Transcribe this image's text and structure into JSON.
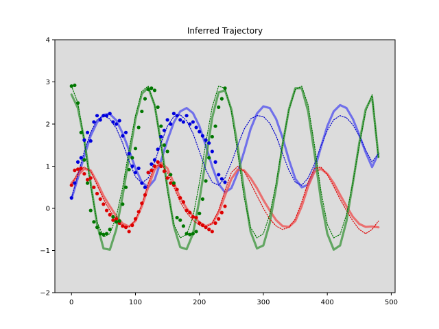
{
  "chart_data": {
    "type": "line",
    "title": "Inferred Trajectory",
    "xlabel": "",
    "ylabel": "",
    "xlim": [
      -26,
      506
    ],
    "ylim": [
      -2,
      4
    ],
    "xticks": [
      0,
      100,
      200,
      300,
      400,
      500
    ],
    "yticks": [
      -2,
      -1,
      0,
      1,
      2,
      3,
      4
    ],
    "grid": false,
    "background": "#dcdcdc",
    "series": [
      {
        "role": "inferred",
        "color": "#5555ee",
        "x": [
          0,
          10,
          20,
          30,
          40,
          50,
          60,
          70,
          80,
          90,
          100,
          110,
          120,
          130,
          140,
          150,
          160,
          170,
          180,
          190,
          200,
          210,
          220,
          230,
          240,
          250,
          260,
          270,
          280,
          290,
          300,
          310,
          320,
          330,
          340,
          350,
          360,
          370,
          380,
          390,
          400,
          410,
          420,
          430,
          440,
          450,
          460,
          470,
          480
        ],
        "y": [
          0.22,
          0.72,
          1.24,
          1.72,
          2.04,
          2.22,
          2.24,
          2.09,
          1.78,
          1.38,
          0.95,
          0.62,
          0.5,
          0.68,
          1.13,
          1.62,
          2.04,
          2.3,
          2.38,
          2.26,
          1.95,
          1.49,
          0.99,
          0.58,
          0.38,
          0.48,
          0.85,
          1.35,
          1.88,
          2.25,
          2.42,
          2.38,
          2.12,
          1.68,
          1.15,
          0.7,
          0.5,
          0.56,
          0.92,
          1.45,
          1.95,
          2.3,
          2.45,
          2.38,
          2.12,
          1.74,
          1.33,
          0.98,
          1.3
        ]
      },
      {
        "role": "inferred",
        "color": "#ee5555",
        "x": [
          0,
          10,
          20,
          30,
          40,
          50,
          60,
          70,
          80,
          90,
          100,
          110,
          120,
          130,
          140,
          150,
          160,
          170,
          180,
          190,
          200,
          210,
          220,
          230,
          240,
          250,
          260,
          270,
          280,
          290,
          300,
          310,
          320,
          330,
          340,
          350,
          360,
          370,
          380,
          390,
          400,
          410,
          420,
          430,
          440,
          450,
          460,
          470,
          480
        ],
        "y": [
          0.6,
          0.78,
          0.94,
          0.9,
          0.62,
          0.3,
          0.05,
          -0.18,
          -0.36,
          -0.43,
          -0.3,
          0.05,
          0.5,
          0.92,
          1.08,
          0.95,
          0.6,
          0.25,
          0.0,
          -0.18,
          -0.33,
          -0.42,
          -0.36,
          -0.1,
          0.3,
          0.7,
          0.92,
          0.9,
          0.72,
          0.48,
          0.2,
          -0.05,
          -0.28,
          -0.42,
          -0.44,
          -0.3,
          0.05,
          0.52,
          0.87,
          0.94,
          0.82,
          0.6,
          0.32,
          0.05,
          -0.2,
          -0.37,
          -0.44,
          -0.43,
          -0.45
        ]
      },
      {
        "role": "inferred",
        "color": "#449944",
        "x": [
          0,
          10,
          20,
          30,
          40,
          50,
          60,
          70,
          80,
          90,
          100,
          110,
          120,
          130,
          140,
          150,
          160,
          170,
          180,
          190,
          200,
          210,
          220,
          230,
          240,
          250,
          260,
          270,
          280,
          290,
          300,
          310,
          320,
          330,
          340,
          350,
          360,
          370,
          380,
          390,
          400,
          410,
          420,
          430,
          440,
          450,
          460,
          470,
          480
        ],
        "y": [
          2.7,
          2.38,
          1.62,
          0.6,
          -0.38,
          -0.95,
          -0.98,
          -0.5,
          0.3,
          1.22,
          2.12,
          2.72,
          2.86,
          2.45,
          1.55,
          0.5,
          -0.42,
          -0.92,
          -0.97,
          -0.6,
          0.2,
          1.15,
          2.15,
          2.75,
          2.8,
          2.35,
          1.45,
          0.4,
          -0.55,
          -0.95,
          -0.88,
          -0.35,
          0.5,
          1.5,
          2.35,
          2.85,
          2.85,
          2.3,
          1.3,
          0.2,
          -0.6,
          -0.98,
          -0.88,
          -0.3,
          0.6,
          1.55,
          2.35,
          2.65,
          1.22
        ]
      },
      {
        "role": "true",
        "color": "#0000cc",
        "x": [
          0,
          10,
          20,
          30,
          40,
          50,
          60,
          70,
          80,
          90,
          100,
          110,
          120,
          130,
          140,
          150,
          160,
          170,
          180,
          190,
          200,
          210,
          220,
          230,
          240,
          250,
          260,
          270,
          280,
          290,
          300,
          310,
          320,
          330,
          340,
          350,
          360,
          370,
          380,
          390,
          400,
          410,
          420,
          430,
          440,
          450,
          460,
          470,
          480
        ],
        "y": [
          0.25,
          0.8,
          1.35,
          1.8,
          2.1,
          2.2,
          2.12,
          1.9,
          1.55,
          1.12,
          0.75,
          0.6,
          0.72,
          1.1,
          1.55,
          1.95,
          2.18,
          2.22,
          2.08,
          1.78,
          1.35,
          0.92,
          0.62,
          0.55,
          0.72,
          1.08,
          1.5,
          1.88,
          2.12,
          2.2,
          2.18,
          2.02,
          1.72,
          1.3,
          0.9,
          0.62,
          0.55,
          0.72,
          1.05,
          1.48,
          1.85,
          2.1,
          2.2,
          2.15,
          1.98,
          1.72,
          1.38,
          1.1,
          1.3
        ]
      },
      {
        "role": "true",
        "color": "#dd0000",
        "x": [
          0,
          10,
          20,
          30,
          40,
          50,
          60,
          70,
          80,
          90,
          100,
          110,
          120,
          130,
          140,
          150,
          160,
          170,
          180,
          190,
          200,
          210,
          220,
          230,
          240,
          250,
          260,
          270,
          280,
          290,
          300,
          310,
          320,
          330,
          340,
          350,
          360,
          370,
          380,
          390,
          400,
          410,
          420,
          430,
          440,
          450,
          460,
          470,
          480
        ],
        "y": [
          0.55,
          0.85,
          0.98,
          0.88,
          0.55,
          0.22,
          -0.05,
          -0.28,
          -0.42,
          -0.44,
          -0.28,
          0.1,
          0.6,
          1.0,
          1.05,
          0.85,
          0.5,
          0.15,
          -0.1,
          -0.28,
          -0.4,
          -0.45,
          -0.35,
          -0.05,
          0.42,
          0.85,
          1.0,
          0.88,
          0.6,
          0.3,
          0.0,
          -0.25,
          -0.42,
          -0.5,
          -0.45,
          -0.25,
          0.15,
          0.62,
          0.95,
          0.98,
          0.8,
          0.52,
          0.22,
          -0.05,
          -0.3,
          -0.5,
          -0.6,
          -0.5,
          -0.3
        ]
      },
      {
        "role": "true",
        "color": "#007700",
        "x": [
          0,
          10,
          20,
          30,
          40,
          50,
          60,
          70,
          80,
          90,
          100,
          110,
          120,
          130,
          140,
          150,
          160,
          170,
          180,
          190,
          200,
          210,
          220,
          230,
          240,
          250,
          260,
          270,
          280,
          290,
          300,
          310,
          320,
          330,
          340,
          350,
          360,
          370,
          380,
          390,
          400,
          410,
          420,
          430,
          440,
          450,
          460,
          470,
          480
        ],
        "y": [
          2.9,
          2.5,
          1.6,
          0.52,
          -0.32,
          -0.68,
          -0.6,
          -0.2,
          0.5,
          1.4,
          2.2,
          2.78,
          2.9,
          2.45,
          1.5,
          0.42,
          -0.38,
          -0.7,
          -0.62,
          -0.2,
          0.6,
          1.55,
          2.4,
          2.9,
          2.85,
          2.3,
          1.3,
          0.25,
          -0.45,
          -0.7,
          -0.6,
          -0.15,
          0.6,
          1.52,
          2.35,
          2.82,
          2.9,
          2.45,
          1.5,
          0.42,
          -0.38,
          -0.7,
          -0.62,
          -0.15,
          0.62,
          1.5,
          2.3,
          2.7,
          1.2
        ]
      },
      {
        "role": "observed",
        "color": "#0000dd",
        "x": [
          0,
          5,
          10,
          15,
          20,
          25,
          30,
          35,
          40,
          45,
          50,
          55,
          60,
          65,
          70,
          75,
          80,
          85,
          90,
          95,
          100,
          105,
          110,
          115,
          120,
          125,
          130,
          135,
          140,
          145,
          150,
          155,
          160,
          165,
          170,
          175,
          180,
          185,
          190,
          195,
          200,
          205,
          210,
          215,
          220,
          225,
          230,
          235,
          240
        ],
        "y": [
          0.25,
          0.6,
          1.1,
          1.2,
          1.62,
          1.8,
          1.6,
          2.05,
          2.2,
          2.1,
          2.2,
          2.2,
          2.25,
          2.05,
          2.0,
          2.08,
          1.72,
          1.8,
          1.3,
          1.0,
          0.85,
          0.95,
          0.6,
          0.5,
          0.85,
          1.05,
          1.15,
          1.4,
          1.7,
          1.85,
          2.1,
          2.0,
          2.25,
          2.2,
          2.1,
          2.05,
          2.2,
          2.0,
          2.05,
          1.92,
          1.82,
          1.72,
          1.62,
          1.55,
          1.35,
          1.1,
          0.8,
          0.7,
          0.62
        ]
      },
      {
        "role": "observed",
        "color": "#dd0000",
        "x": [
          0,
          5,
          10,
          15,
          20,
          25,
          30,
          35,
          40,
          45,
          50,
          55,
          60,
          65,
          70,
          75,
          80,
          85,
          90,
          95,
          100,
          105,
          110,
          115,
          120,
          125,
          130,
          135,
          140,
          145,
          150,
          155,
          160,
          165,
          170,
          175,
          180,
          185,
          190,
          195,
          200,
          205,
          210,
          215,
          220,
          225,
          230,
          235,
          240
        ],
        "y": [
          0.55,
          0.9,
          0.93,
          0.95,
          0.82,
          0.68,
          0.72,
          0.5,
          0.35,
          0.22,
          0.1,
          -0.05,
          -0.15,
          -0.28,
          -0.25,
          -0.35,
          -0.42,
          -0.45,
          -0.55,
          -0.4,
          -0.25,
          -0.08,
          0.12,
          0.32,
          0.85,
          0.9,
          1.0,
          1.1,
          1.0,
          0.88,
          0.72,
          0.6,
          0.55,
          0.45,
          0.25,
          0.15,
          -0.05,
          -0.1,
          -0.2,
          -0.22,
          -0.35,
          -0.4,
          -0.45,
          -0.5,
          -0.55,
          -0.35,
          -0.25,
          -0.1,
          0.05
        ]
      },
      {
        "role": "observed",
        "color": "#007700",
        "x": [
          0,
          5,
          10,
          15,
          20,
          25,
          30,
          35,
          40,
          45,
          50,
          55,
          60,
          65,
          70,
          75,
          80,
          85,
          90,
          95,
          100,
          105,
          110,
          115,
          120,
          125,
          130,
          135,
          140,
          145,
          150,
          155,
          160,
          165,
          170,
          175,
          180,
          185,
          190,
          195,
          200,
          205,
          210,
          215,
          220,
          225,
          230,
          235,
          240
        ],
        "y": [
          2.9,
          2.92,
          2.5,
          1.8,
          1.15,
          0.6,
          -0.05,
          -0.32,
          -0.45,
          -0.6,
          -0.62,
          -0.6,
          -0.5,
          -0.2,
          -0.32,
          -0.3,
          0.1,
          0.5,
          0.92,
          1.2,
          1.42,
          1.92,
          2.3,
          2.6,
          2.82,
          2.85,
          2.8,
          2.4,
          1.95,
          1.5,
          1.35,
          0.8,
          0.6,
          -0.22,
          -0.28,
          -0.42,
          -0.6,
          -0.62,
          -0.6,
          -0.55,
          -0.12,
          0.22,
          0.65,
          1.2,
          1.7,
          1.95,
          2.4,
          2.6,
          2.85
        ]
      }
    ]
  }
}
